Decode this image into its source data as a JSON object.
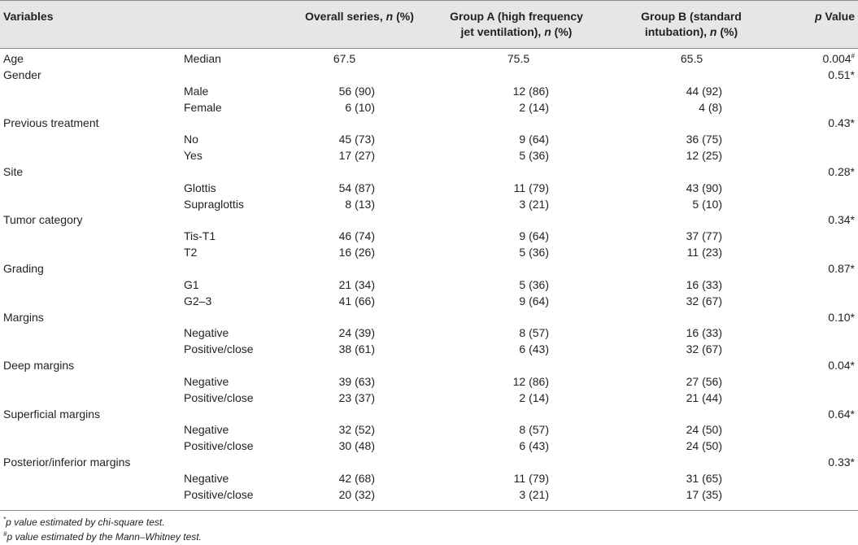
{
  "header": {
    "variables": "Variables",
    "overall": "Overall series, ",
    "overall_n": "n",
    "overall_tail": " (%)",
    "group_a_line1": "Group A (high frequency",
    "group_a_line2": "jet ventilation), ",
    "group_a_n": "n",
    "group_a_tail": " (%)",
    "group_b_line1": "Group B (standard",
    "group_b_line2": "intubation), ",
    "group_b_n": "n",
    "group_b_tail": " (%)",
    "p_italic": "p",
    "p_tail": " Value"
  },
  "rows": [
    {
      "var": "Age",
      "sub": "Median",
      "overall": "67.5",
      "a": "75.5",
      "b": "65.5",
      "p": "0.004",
      "p_mark": "#"
    },
    {
      "var": "Gender",
      "sub": "",
      "overall": "",
      "a": "",
      "b": "",
      "p": "0.51*",
      "p_mark": ""
    },
    {
      "var": "",
      "sub": "Male",
      "overall": "56 (90)",
      "a": "12 (86)",
      "b": "44 (92)",
      "p": "",
      "p_mark": ""
    },
    {
      "var": "",
      "sub": "Female",
      "overall": "6 (10)",
      "a": "2 (14)",
      "b": "4 (8)",
      "p": "",
      "p_mark": ""
    },
    {
      "var": "Previous treatment",
      "sub": "",
      "overall": "",
      "a": "",
      "b": "",
      "p": "0.43*",
      "p_mark": ""
    },
    {
      "var": "",
      "sub": "No",
      "overall": "45 (73)",
      "a": "9 (64)",
      "b": "36 (75)",
      "p": "",
      "p_mark": ""
    },
    {
      "var": "",
      "sub": "Yes",
      "overall": "17 (27)",
      "a": "5 (36)",
      "b": "12 (25)",
      "p": "",
      "p_mark": ""
    },
    {
      "var": "Site",
      "sub": "",
      "overall": "",
      "a": "",
      "b": "",
      "p": "0.28*",
      "p_mark": ""
    },
    {
      "var": "",
      "sub": "Glottis",
      "overall": "54 (87)",
      "a": "11 (79)",
      "b": "43 (90)",
      "p": "",
      "p_mark": ""
    },
    {
      "var": "",
      "sub": "Supraglottis",
      "overall": "8 (13)",
      "a": "3 (21)",
      "b": "5 (10)",
      "p": "",
      "p_mark": ""
    },
    {
      "var": "Tumor category",
      "sub": "",
      "overall": "",
      "a": "",
      "b": "",
      "p": "0.34*",
      "p_mark": ""
    },
    {
      "var": "",
      "sub": "Tis-T1",
      "overall": "46 (74)",
      "a": "9 (64)",
      "b": "37 (77)",
      "p": "",
      "p_mark": ""
    },
    {
      "var": "",
      "sub": "T2",
      "overall": "16 (26)",
      "a": "5 (36)",
      "b": "11 (23)",
      "p": "",
      "p_mark": ""
    },
    {
      "var": "Grading",
      "sub": "",
      "overall": "",
      "a": "",
      "b": "",
      "p": "0.87*",
      "p_mark": ""
    },
    {
      "var": "",
      "sub": "G1",
      "overall": "21 (34)",
      "a": "5 (36)",
      "b": "16 (33)",
      "p": "",
      "p_mark": ""
    },
    {
      "var": "",
      "sub": "G2–3",
      "overall": "41 (66)",
      "a": "9 (64)",
      "b": "32 (67)",
      "p": "",
      "p_mark": ""
    },
    {
      "var": "Margins",
      "sub": "",
      "overall": "",
      "a": "",
      "b": "",
      "p": "0.10*",
      "p_mark": ""
    },
    {
      "var": "",
      "sub": "Negative",
      "overall": "24 (39)",
      "a": "8 (57)",
      "b": "16 (33)",
      "p": "",
      "p_mark": ""
    },
    {
      "var": "",
      "sub": "Positive/close",
      "overall": "38 (61)",
      "a": "6 (43)",
      "b": "32 (67)",
      "p": "",
      "p_mark": ""
    },
    {
      "var": "Deep margins",
      "sub": "",
      "overall": "",
      "a": "",
      "b": "",
      "p": "0.04*",
      "p_mark": ""
    },
    {
      "var": "",
      "sub": "Negative",
      "overall": "39 (63)",
      "a": "12 (86)",
      "b": "27 (56)",
      "p": "",
      "p_mark": ""
    },
    {
      "var": "",
      "sub": "Positive/close",
      "overall": "23 (37)",
      "a": "2 (14)",
      "b": "21 (44)",
      "p": "",
      "p_mark": ""
    },
    {
      "var": "Superficial margins",
      "sub": "",
      "overall": "",
      "a": "",
      "b": "",
      "p": "0.64*",
      "p_mark": ""
    },
    {
      "var": "",
      "sub": "Negative",
      "overall": "32 (52)",
      "a": "8 (57)",
      "b": "24 (50)",
      "p": "",
      "p_mark": ""
    },
    {
      "var": "",
      "sub": "Positive/close",
      "overall": "30 (48)",
      "a": "6 (43)",
      "b": "24 (50)",
      "p": "",
      "p_mark": ""
    },
    {
      "var": "Posterior/inferior margins",
      "sub": "",
      "overall": "",
      "a": "",
      "b": "",
      "p": "0.33*",
      "p_mark": ""
    },
    {
      "var": "",
      "sub": "Negative",
      "overall": "42 (68)",
      "a": "11 (79)",
      "b": "31 (65)",
      "p": "",
      "p_mark": ""
    },
    {
      "var": "",
      "sub": "Positive/close",
      "overall": "20 (32)",
      "a": "3 (21)",
      "b": "17 (35)",
      "p": "",
      "p_mark": ""
    }
  ],
  "footnotes": {
    "f1_mark": "*",
    "f1_text": "p value estimated by chi-square test.",
    "f2_mark": "#",
    "f2_text": "p value estimated by the Mann–Whitney test."
  }
}
